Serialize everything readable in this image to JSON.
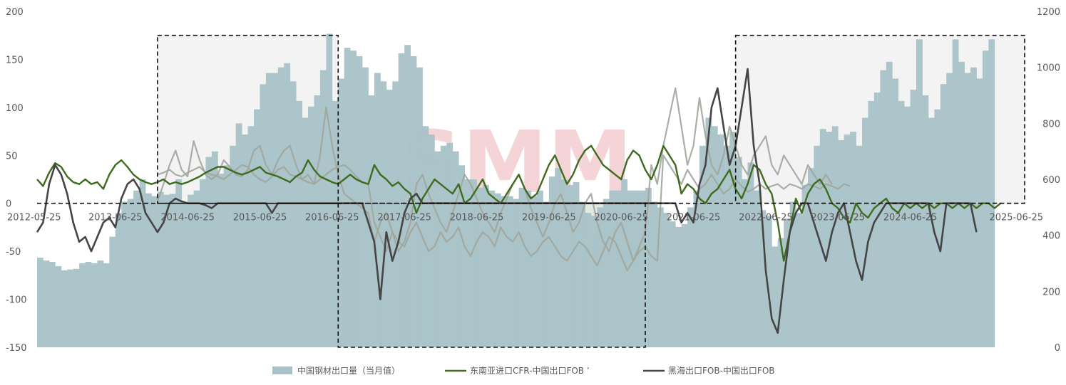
{
  "chart_data": {
    "type": "line",
    "title": "",
    "watermark": "SMM",
    "x_tick_labels": [
      "2012-05-25",
      "2013-06-25",
      "2014-06-25",
      "2015-06-25",
      "2016-06-25",
      "2017-06-25",
      "2018-06-25",
      "2019-06-25",
      "2020-06-25",
      "2021-06-25",
      "2022-06-25",
      "2023-06-25",
      "2024-06-25",
      "2025-06-25"
    ],
    "y_left": {
      "ticks": [
        "200",
        "150",
        "100",
        "50",
        "0",
        "-50",
        "-100",
        "-150"
      ],
      "min": -150,
      "max": 200
    },
    "y_right": {
      "ticks": [
        "1200",
        "1000",
        "800",
        "600",
        "400",
        "200",
        "0"
      ],
      "min": 0,
      "max": 1200
    },
    "colors": {
      "bars": "#a8c2c8",
      "series_1": "#3f6b1e",
      "series_2": "#454545",
      "series_faded": "#a0a69c",
      "shade_upper": "#f2f2f2",
      "shade_lower": "#c9dcc4",
      "watermark": "#e8a0a6"
    },
    "highlight_boxes_x": [
      {
        "from": "2014-01",
        "to": "2016-07",
        "y_from": 0,
        "y_to": 175
      },
      {
        "from": "2016-07",
        "to": "2020-10",
        "y_from": -150,
        "y_to": 0
      },
      {
        "from": "2022-01",
        "to": "2026-01",
        "y_from": 0,
        "y_to": 175
      }
    ],
    "legend": [
      {
        "label": "中国钢材出口量（当月值）",
        "kind": "bar"
      },
      {
        "label": "东南亚进口CFR-中国出口FOB ’",
        "kind": "line"
      },
      {
        "label": "黑海出口FOB-中国出口FOB",
        "kind": "line"
      }
    ],
    "bars": {
      "name": "中国钢材出口量（当月值）",
      "axis": "right",
      "start": "2012-05",
      "values": [
        320,
        310,
        305,
        290,
        275,
        278,
        280,
        300,
        305,
        300,
        310,
        300,
        395,
        480,
        520,
        530,
        560,
        600,
        550,
        540,
        555,
        545,
        548,
        600,
        520,
        545,
        560,
        600,
        680,
        700,
        620,
        650,
        720,
        800,
        760,
        790,
        850,
        940,
        980,
        980,
        1000,
        1015,
        950,
        880,
        820,
        860,
        900,
        990,
        1120,
        880,
        960,
        1070,
        1060,
        1040,
        1000,
        900,
        980,
        950,
        920,
        950,
        1050,
        1080,
        1040,
        1000,
        790,
        760,
        700,
        720,
        730,
        700,
        650,
        600,
        600,
        570,
        580,
        560,
        550,
        540,
        540,
        530,
        570,
        560,
        540,
        560,
        520,
        610,
        640,
        600,
        580,
        590,
        520,
        480,
        470,
        500,
        530,
        560,
        560,
        600,
        560,
        560,
        560,
        570,
        520,
        500,
        480,
        450,
        430,
        440,
        500,
        560,
        720,
        820,
        790,
        760,
        720,
        770,
        680,
        600,
        660,
        560,
        490,
        470,
        360,
        390,
        460,
        520,
        480,
        580,
        640,
        720,
        780,
        770,
        790,
        740,
        760,
        770,
        720,
        820,
        880,
        910,
        990,
        1020,
        960,
        880,
        860,
        920,
        1100,
        900,
        820,
        850,
        940,
        980,
        1100,
        1020,
        980,
        1000,
        960,
        1060,
        1100
      ]
    },
    "series": [
      {
        "name": "东南亚进口CFR-中国出口FOB ’",
        "axis": "left",
        "start": "2012-05",
        "values": [
          25,
          18,
          32,
          42,
          38,
          28,
          22,
          20,
          25,
          20,
          22,
          15,
          30,
          40,
          45,
          38,
          30,
          25,
          22,
          20,
          22,
          25,
          20,
          22,
          20,
          22,
          25,
          28,
          32,
          35,
          38,
          38,
          35,
          32,
          30,
          32,
          35,
          38,
          32,
          30,
          28,
          25,
          22,
          28,
          32,
          45,
          35,
          28,
          25,
          22,
          20,
          25,
          30,
          25,
          22,
          20,
          40,
          30,
          25,
          18,
          22,
          15,
          10,
          -10,
          5,
          15,
          25,
          20,
          15,
          10,
          20,
          0,
          5,
          15,
          25,
          10,
          5,
          0,
          10,
          20,
          30,
          15,
          5,
          10,
          25,
          40,
          50,
          35,
          20,
          30,
          45,
          55,
          60,
          50,
          40,
          35,
          30,
          25,
          45,
          55,
          50,
          35,
          25,
          40,
          60,
          50,
          40,
          10,
          20,
          15,
          5,
          0,
          10,
          15,
          25,
          35,
          15,
          5,
          20,
          40,
          35,
          20,
          10,
          -20,
          -60,
          -30,
          5,
          -10,
          10,
          20,
          25,
          15,
          0,
          -5,
          -15,
          -20,
          0,
          -10,
          -15,
          -5,
          0,
          5,
          -5,
          -10,
          0,
          -5,
          0,
          -5,
          0,
          -5,
          0,
          0,
          -5,
          0,
          -5,
          0,
          -5,
          0,
          0,
          -5,
          0
        ]
      },
      {
        "name": "黑海出口FOB-中国出口FOB",
        "axis": "left",
        "start": "2012-05",
        "values": [
          -30,
          -20,
          20,
          40,
          30,
          10,
          -20,
          -40,
          -35,
          -50,
          -35,
          -20,
          -15,
          -25,
          5,
          20,
          25,
          15,
          -10,
          -20,
          -30,
          -20,
          0,
          5,
          2,
          0,
          0,
          0,
          -2,
          -5,
          0,
          0,
          0,
          0,
          0,
          0,
          0,
          0,
          0,
          -10,
          0,
          0,
          0,
          0,
          0,
          0,
          0,
          0,
          0,
          0,
          0,
          0,
          0,
          0,
          0,
          -20,
          -40,
          -100,
          -30,
          -60,
          -40,
          -10,
          5,
          10,
          0,
          0,
          0,
          0,
          0,
          0,
          0,
          0,
          0,
          0,
          0,
          0,
          0,
          0,
          0,
          0,
          0,
          0,
          0,
          0,
          0,
          0,
          0,
          0,
          0,
          0,
          0,
          0,
          0,
          0,
          0,
          0,
          0,
          0,
          0,
          0,
          0,
          0,
          0,
          0,
          0,
          0,
          0,
          -20,
          -10,
          -20,
          20,
          40,
          100,
          120,
          80,
          40,
          60,
          100,
          140,
          60,
          20,
          -70,
          -120,
          -135,
          -80,
          -30,
          -10,
          0,
          0,
          -20,
          -40,
          -60,
          -30,
          -10,
          0,
          -30,
          -60,
          -80,
          -40,
          -20,
          -10,
          0,
          0,
          0,
          0,
          0,
          0,
          0,
          0,
          -30,
          -50,
          0,
          0,
          0,
          0,
          0,
          -30
        ]
      },
      {
        "name": "faded-series-a",
        "axis": "left",
        "start": "2014-01",
        "values": [
          30,
          32,
          35,
          30,
          28,
          32,
          35,
          38,
          32,
          30,
          28,
          25,
          30,
          35,
          40,
          38,
          30,
          25,
          22,
          28,
          35,
          38,
          30,
          28,
          25,
          22,
          20,
          25,
          30,
          35,
          38,
          40,
          35,
          28,
          22,
          20,
          -20,
          -35,
          -50,
          -30,
          -40,
          -45,
          -30,
          -20,
          -35,
          -50,
          -45,
          -30,
          -40,
          -35,
          -25,
          -45,
          -55,
          -40,
          -30,
          -35,
          -45,
          -25,
          -35,
          -40,
          -30,
          -45,
          -55,
          -50,
          -40,
          -35,
          -45,
          -55,
          -60,
          -50,
          -40,
          -45,
          -55,
          -65,
          -50,
          -35,
          -40,
          -55,
          -70,
          -60,
          -50,
          -45,
          -55,
          -60,
          50,
          40,
          30,
          20,
          35,
          25,
          15,
          20,
          30,
          20,
          10,
          15,
          25,
          18,
          12,
          15,
          20,
          15,
          18,
          20,
          15,
          20,
          18,
          15,
          20,
          18,
          15,
          20,
          18,
          15,
          20,
          18
        ]
      },
      {
        "name": "faded-series-b",
        "axis": "left",
        "start": "2014-01",
        "values": [
          2,
          20,
          40,
          55,
          35,
          28,
          65,
          45,
          30,
          25,
          30,
          45,
          38,
          30,
          28,
          35,
          55,
          60,
          40,
          30,
          45,
          55,
          60,
          40,
          25,
          30,
          20,
          50,
          100,
          60,
          30,
          10,
          5,
          0,
          -5,
          -10,
          -40,
          -20,
          -10,
          -30,
          -50,
          -40,
          -20,
          20,
          30,
          10,
          -5,
          -20,
          -30,
          -10,
          10,
          30,
          20,
          5,
          -10,
          -20,
          -30,
          -10,
          5,
          20,
          30,
          15,
          -5,
          -20,
          -35,
          -20,
          0,
          10,
          -10,
          -30,
          -20,
          0,
          10,
          -20,
          -40,
          -50,
          -30,
          -20,
          -40,
          -60,
          -45,
          -30,
          40,
          20,
          60,
          90,
          120,
          80,
          40,
          60,
          110,
          70,
          40,
          30,
          50,
          80,
          60,
          40,
          30,
          50,
          60,
          70,
          40,
          30,
          50,
          40,
          30,
          20,
          40,
          30,
          20,
          30,
          20
        ]
      }
    ]
  }
}
